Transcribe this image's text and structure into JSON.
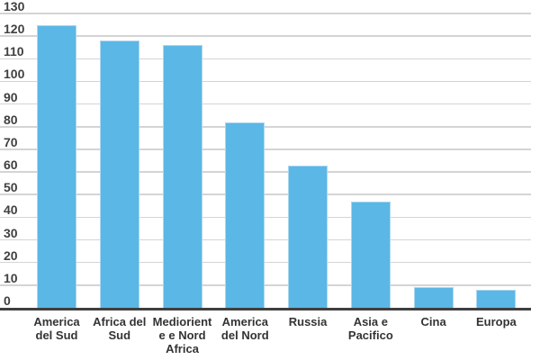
{
  "chart_data": {
    "type": "bar",
    "title": "",
    "xlabel": "",
    "ylabel": "",
    "categories": [
      "America del Sud",
      "Africa del Sud",
      "Medioriente e Nord Africa",
      "America del Nord",
      "Russia",
      "Asia e Pacifico",
      "Cina",
      "Europa"
    ],
    "category_display_lines": [
      "America\ndel Sud",
      "Africa del\nSud",
      "Mediorient\ne e Nord\nAfrica",
      "America\ndel Nord",
      "Russia",
      "Asia e\nPacifico",
      "Cina",
      "Europa"
    ],
    "values": [
      125,
      118,
      116,
      82,
      63,
      47,
      9,
      8
    ],
    "ylim": [
      0,
      130
    ],
    "ytick_step": 10,
    "ytick_labels": [
      "0",
      "10",
      "20",
      "30",
      "40",
      "50",
      "60",
      "70",
      "80",
      "90",
      "100",
      "110",
      "120",
      "130"
    ],
    "grid": "horizontal",
    "legend": "none",
    "colors": {
      "bar_fill": "#5BB7E5",
      "bar_edge": "#ABD7F1",
      "gridline": "#D4D4D4",
      "axis_line": "#3F3F3F",
      "tick_label": "#404040",
      "category_label": "#333333",
      "background": "#FFFFFF"
    }
  }
}
